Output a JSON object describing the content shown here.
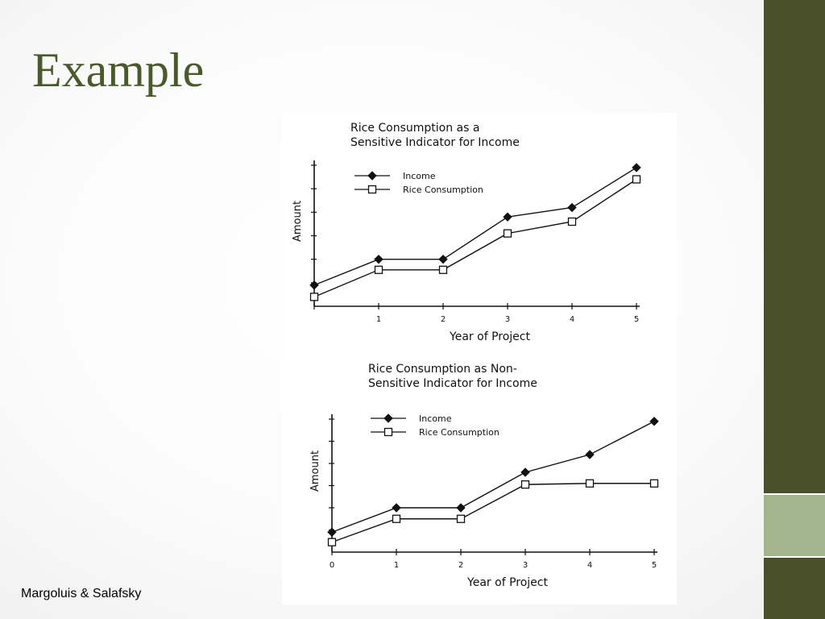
{
  "slide": {
    "title": "Example",
    "credit": "Margoluis & Salafsky"
  },
  "colors": {
    "title": "#4a5a2a",
    "sidebar": "#4a5029",
    "sidebar_accent": "#a3b58d",
    "ink": "#111111"
  },
  "chart_data": [
    {
      "type": "line",
      "title": "Rice Consumption as a Sensitive Indicator for Income",
      "title_lines": [
        "Rice Consumption as a",
        "Sensitive Indicator for Income"
      ],
      "xlabel": "Year of Project",
      "ylabel": "Amount",
      "x": [
        0,
        1,
        2,
        3,
        4,
        5
      ],
      "x_tick_labels": [
        "",
        "1",
        "2",
        "3",
        "4",
        "5"
      ],
      "xlim": [
        0,
        5
      ],
      "ylim": [
        0,
        6
      ],
      "y_ticks": [
        1,
        2,
        3,
        4,
        5,
        6
      ],
      "grid": false,
      "legend_position": "top-left",
      "series": [
        {
          "name": "Income",
          "marker": "filled-diamond",
          "values": [
            0.9,
            2.0,
            2.0,
            3.8,
            4.2,
            5.9
          ]
        },
        {
          "name": "Rice Consumption",
          "marker": "open-square",
          "values": [
            0.4,
            1.55,
            1.55,
            3.1,
            3.6,
            5.4
          ]
        }
      ]
    },
    {
      "type": "line",
      "title": "Rice Consumption as Non-Sensitive Indicator for Income",
      "title_lines": [
        "Rice Consumption as Non-",
        "Sensitive Indicator for Income"
      ],
      "xlabel": "Year of Project",
      "ylabel": "Amount",
      "x": [
        0,
        1,
        2,
        3,
        4,
        5
      ],
      "x_tick_labels": [
        "0",
        "1",
        "2",
        "3",
        "4",
        "5"
      ],
      "xlim": [
        0,
        5
      ],
      "ylim": [
        0,
        6
      ],
      "y_ticks": [
        1,
        2,
        3,
        4,
        5,
        6
      ],
      "grid": false,
      "legend_position": "top-left",
      "series": [
        {
          "name": "Income",
          "marker": "filled-diamond",
          "values": [
            0.9,
            2.0,
            2.0,
            3.6,
            4.4,
            5.9
          ]
        },
        {
          "name": "Rice Consumption",
          "marker": "open-square",
          "values": [
            0.45,
            1.5,
            1.5,
            3.05,
            3.1,
            3.1
          ]
        }
      ]
    }
  ]
}
